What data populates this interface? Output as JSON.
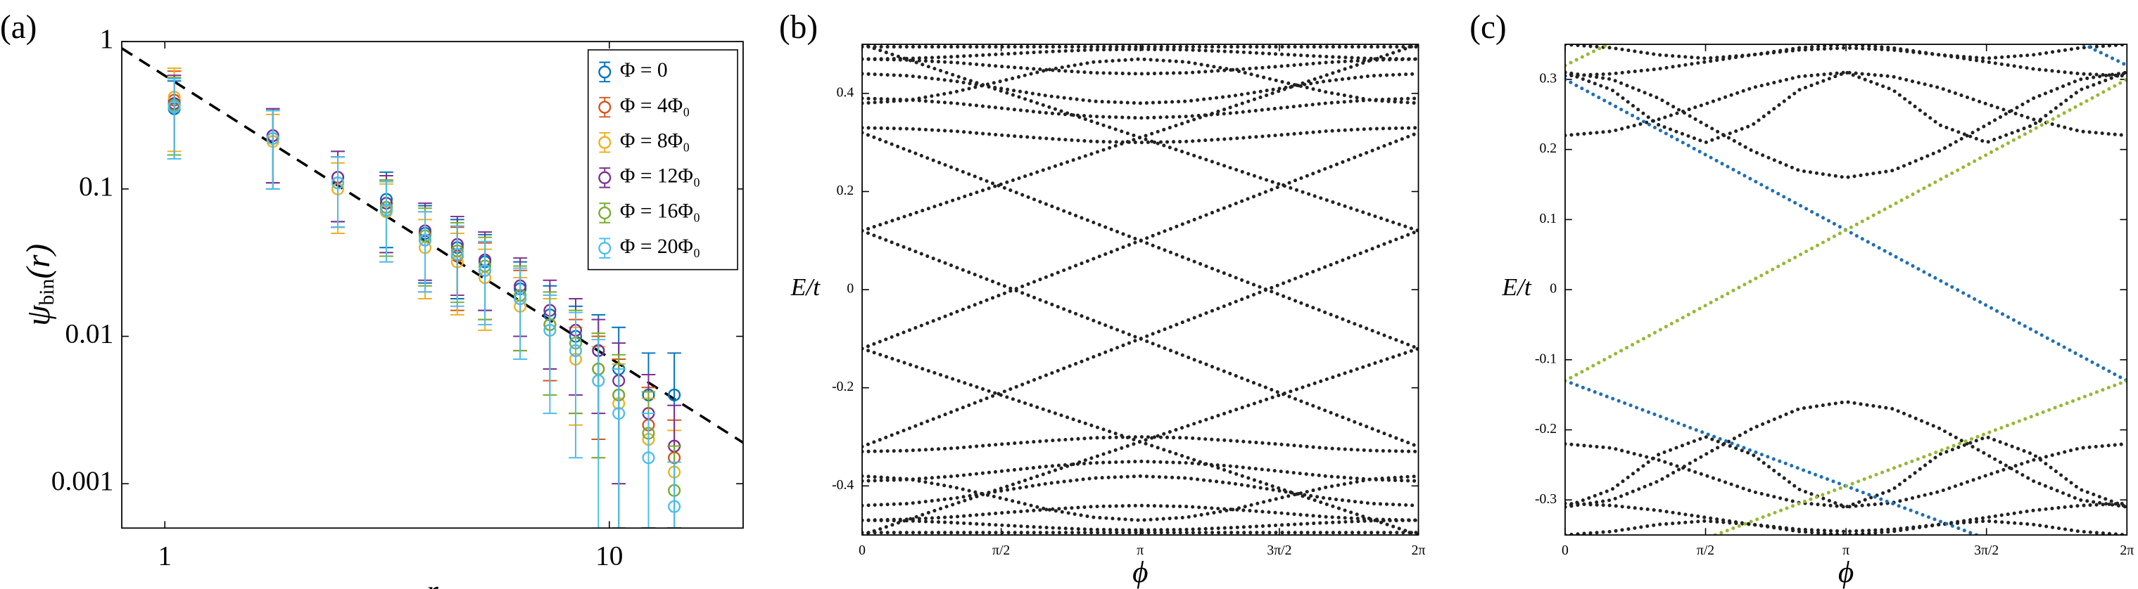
{
  "chart_data": [
    {
      "type": "scatter",
      "panel_label": "(a)",
      "x_label": "r",
      "y_label": [
        "ψ",
        "bin",
        "(r)"
      ],
      "log_x": true,
      "log_y": true,
      "xlim": [
        0.8,
        20
      ],
      "ylim": [
        0.0005,
        1
      ],
      "xticks": [
        1,
        10
      ],
      "yticks": [
        0.001,
        0.01,
        0.1,
        1
      ],
      "legend": "upper right",
      "x": [
        1.05,
        1.75,
        2.45,
        3.15,
        3.85,
        4.55,
        5.25,
        6.3,
        7.35,
        8.4,
        9.45,
        10.5,
        12.25,
        14
      ],
      "fit_line": {
        "color": "#000000",
        "x": [
          0.8,
          20
        ],
        "values": [
          0.9,
          0.0019
        ]
      },
      "series": [
        {
          "name": "Φ = 0",
          "color": "#0072bd",
          "values": [
            0.35,
            0.23,
            0.12,
            0.085,
            0.05,
            0.04,
            0.032,
            0.021,
            0.014,
            0.01,
            0.008,
            0.006,
            0.004,
            0.004
          ],
          "errors": [
            0.19,
            0.12,
            0.06,
            0.045,
            0.027,
            0.022,
            0.017,
            0.011,
            0.008,
            0.006,
            0.006,
            0.0055,
            0.0037,
            0.0037
          ]
        },
        {
          "name": "Φ = 4Φ₀",
          "color": "#d95319",
          "values": [
            0.4,
            0.22,
            0.11,
            0.075,
            0.045,
            0.035,
            0.028,
            0.018,
            0.012,
            0.008,
            0.006,
            0.004,
            0.0025,
            0.0015
          ],
          "errors": [
            0.23,
            0.12,
            0.055,
            0.04,
            0.025,
            0.02,
            0.015,
            0.01,
            0.007,
            0.005,
            0.004,
            0.003,
            0.002,
            0.0012
          ]
        },
        {
          "name": "Φ = 8Φ₀",
          "color": "#edb120",
          "values": [
            0.42,
            0.21,
            0.1,
            0.07,
            0.04,
            0.032,
            0.025,
            0.016,
            0.011,
            0.007,
            0.005,
            0.0035,
            0.002,
            0.0012
          ],
          "errors": [
            0.24,
            0.11,
            0.05,
            0.038,
            0.022,
            0.018,
            0.014,
            0.009,
            0.007,
            0.0045,
            0.0035,
            0.003,
            0.0018,
            0.0011
          ]
        },
        {
          "name": "Φ = 12Φ₀",
          "color": "#7e2f8e",
          "values": [
            0.38,
            0.23,
            0.12,
            0.08,
            0.052,
            0.042,
            0.033,
            0.022,
            0.015,
            0.011,
            0.008,
            0.005,
            0.003,
            0.0018
          ],
          "errors": [
            0.21,
            0.12,
            0.06,
            0.043,
            0.028,
            0.023,
            0.018,
            0.012,
            0.009,
            0.007,
            0.005,
            0.004,
            0.0025,
            0.0016
          ]
        },
        {
          "name": "Φ = 16Φ₀",
          "color": "#77ac30",
          "values": [
            0.37,
            0.22,
            0.11,
            0.075,
            0.048,
            0.038,
            0.03,
            0.019,
            0.012,
            0.009,
            0.006,
            0.004,
            0.0022,
            0.0009
          ],
          "errors": [
            0.2,
            0.12,
            0.055,
            0.04,
            0.026,
            0.021,
            0.017,
            0.011,
            0.008,
            0.006,
            0.0045,
            0.0035,
            0.002,
            0.0009
          ]
        },
        {
          "name": "Φ = 20Φ₀",
          "color": "#4dbeee",
          "values": [
            0.36,
            0.22,
            0.11,
            0.072,
            0.045,
            0.036,
            0.028,
            0.018,
            0.011,
            0.008,
            0.005,
            0.003,
            0.0015,
            0.0007
          ],
          "errors": [
            0.2,
            0.12,
            0.055,
            0.04,
            0.025,
            0.02,
            0.016,
            0.011,
            0.008,
            0.0065,
            0.0045,
            0.003,
            0.0015,
            0.0007
          ]
        }
      ]
    },
    {
      "type": "line",
      "panel_label": "(b)",
      "x_label": "ϕ",
      "y_label": "E/t",
      "xlim": [
        0,
        6.2832
      ],
      "ylim": [
        -0.5,
        0.5
      ],
      "xticks": [
        0,
        {
          "value": 1.5708,
          "label": "π/2"
        },
        {
          "value": 3.1416,
          "label": "π"
        },
        {
          "value": 4.7124,
          "label": "3π/2"
        },
        {
          "value": 6.2832,
          "label": "2π"
        }
      ],
      "yticks": [
        -0.4,
        -0.2,
        0,
        0.2,
        0.4
      ],
      "x": [
        0,
        0.5236,
        1.0472,
        1.5708,
        2.0944,
        2.618,
        3.1416,
        3.6652,
        4.1888,
        4.7124,
        5.236,
        5.7596,
        6.2832
      ],
      "series": [
        {
          "color": "#222222",
          "values": [
            0.33,
            0.328,
            0.323,
            0.315,
            0.308,
            0.302,
            0.3,
            0.302,
            0.308,
            0.315,
            0.323,
            0.328,
            0.33
          ]
        },
        {
          "color": "#222222",
          "values": [
            0.39,
            0.387,
            0.38,
            0.37,
            0.36,
            0.353,
            0.35,
            0.353,
            0.36,
            0.37,
            0.38,
            0.387,
            0.39
          ]
        },
        {
          "color": "#222222",
          "values": [
            0.38,
            0.386,
            0.403,
            0.425,
            0.448,
            0.464,
            0.47,
            0.464,
            0.448,
            0.425,
            0.403,
            0.386,
            0.38
          ]
        },
        {
          "color": "#222222",
          "values": [
            0.44,
            0.436,
            0.425,
            0.41,
            0.395,
            0.384,
            0.38,
            0.384,
            0.395,
            0.41,
            0.425,
            0.436,
            0.44
          ]
        },
        {
          "color": "#222222",
          "values": [
            0.47,
            0.468,
            0.463,
            0.455,
            0.448,
            0.442,
            0.44,
            0.442,
            0.448,
            0.455,
            0.463,
            0.468,
            0.47
          ]
        },
        {
          "color": "#222222",
          "values": [
            0.47,
            0.471,
            0.475,
            0.48,
            0.485,
            0.489,
            0.49,
            0.489,
            0.485,
            0.48,
            0.475,
            0.471,
            0.47
          ]
        },
        {
          "color": "#222222",
          "values": [
            0.495,
            0.495,
            0.495,
            0.495,
            0.495,
            0.495,
            0.495,
            0.495,
            0.495,
            0.495,
            0.495,
            0.495,
            0.495
          ]
        },
        {
          "color": "#222222",
          "values": [
            -0.33,
            -0.328,
            -0.323,
            -0.315,
            -0.308,
            -0.302,
            -0.3,
            -0.302,
            -0.308,
            -0.315,
            -0.323,
            -0.328,
            -0.33
          ]
        },
        {
          "color": "#222222",
          "values": [
            -0.39,
            -0.387,
            -0.38,
            -0.37,
            -0.36,
            -0.353,
            -0.35,
            -0.353,
            -0.36,
            -0.37,
            -0.38,
            -0.387,
            -0.39
          ]
        },
        {
          "color": "#222222",
          "values": [
            -0.38,
            -0.386,
            -0.403,
            -0.425,
            -0.448,
            -0.464,
            -0.47,
            -0.464,
            -0.448,
            -0.425,
            -0.403,
            -0.386,
            -0.38
          ]
        },
        {
          "color": "#222222",
          "values": [
            -0.44,
            -0.436,
            -0.425,
            -0.41,
            -0.395,
            -0.384,
            -0.38,
            -0.384,
            -0.395,
            -0.41,
            -0.425,
            -0.436,
            -0.44
          ]
        },
        {
          "color": "#222222",
          "values": [
            -0.47,
            -0.468,
            -0.463,
            -0.455,
            -0.448,
            -0.442,
            -0.44,
            -0.442,
            -0.448,
            -0.455,
            -0.463,
            -0.468,
            -0.47
          ]
        },
        {
          "color": "#222222",
          "values": [
            -0.47,
            -0.471,
            -0.475,
            -0.48,
            -0.485,
            -0.489,
            -0.49,
            -0.489,
            -0.485,
            -0.48,
            -0.475,
            -0.471,
            -0.47
          ]
        },
        {
          "color": "#222222",
          "values": [
            -0.495,
            -0.495,
            -0.495,
            -0.495,
            -0.495,
            -0.495,
            -0.495,
            -0.495,
            -0.495,
            -0.495,
            -0.495,
            -0.495,
            -0.495
          ]
        },
        {
          "color": "#222222",
          "x": [
            0,
            6.2832
          ],
          "values": [
            0.32,
            -0.12
          ]
        },
        {
          "color": "#222222",
          "x": [
            0,
            6.2832
          ],
          "values": [
            -0.12,
            0.32
          ]
        },
        {
          "color": "#222222",
          "x": [
            0,
            6.2832
          ],
          "values": [
            0.12,
            -0.32
          ]
        },
        {
          "color": "#222222",
          "x": [
            0,
            6.2832
          ],
          "values": [
            -0.32,
            0.12
          ]
        },
        {
          "color": "#222222",
          "x": [
            0,
            6.2832
          ],
          "values": [
            0.12,
            0.5
          ]
        },
        {
          "color": "#222222",
          "x": [
            0,
            6.2832
          ],
          "values": [
            0.5,
            0.12
          ]
        },
        {
          "color": "#222222",
          "x": [
            0,
            6.2832
          ],
          "values": [
            -0.12,
            -0.5
          ]
        },
        {
          "color": "#222222",
          "x": [
            0,
            6.2832
          ],
          "values": [
            -0.5,
            -0.12
          ]
        }
      ]
    },
    {
      "type": "line",
      "panel_label": "(c)",
      "x_label": "ϕ",
      "y_label": "E/t",
      "xlim": [
        0,
        6.2832
      ],
      "ylim": [
        -0.35,
        0.35
      ],
      "xticks": [
        0,
        {
          "value": 1.5708,
          "label": "π/2"
        },
        {
          "value": 3.1416,
          "label": "π"
        },
        {
          "value": 4.7124,
          "label": "3π/2"
        },
        {
          "value": 6.2832,
          "label": "2π"
        }
      ],
      "yticks": [
        -0.3,
        -0.2,
        -0.1,
        0,
        0.1,
        0.2,
        0.3
      ],
      "x": [
        0,
        0.5236,
        1.0472,
        1.5708,
        2.0944,
        2.618,
        3.1416,
        3.6652,
        4.1888,
        4.7124,
        5.236,
        5.7596,
        6.2832
      ],
      "series": [
        {
          "color": "#222222",
          "values": [
            0.22,
            0.226,
            0.243,
            0.265,
            0.288,
            0.304,
            0.31,
            0.304,
            0.288,
            0.265,
            0.243,
            0.226,
            0.22
          ]
        },
        {
          "color": "#222222",
          "values": [
            0.31,
            0.3,
            0.273,
            0.235,
            0.198,
            0.17,
            0.16,
            0.17,
            0.198,
            0.235,
            0.273,
            0.3,
            0.31
          ]
        },
        {
          "color": "#222222",
          "values": [
            0.31,
            0.285,
            0.235,
            0.21,
            0.235,
            0.285,
            0.31,
            0.285,
            0.235,
            0.21,
            0.235,
            0.285,
            0.31
          ]
        },
        {
          "color": "#222222",
          "values": [
            0.305,
            0.308,
            0.315,
            0.325,
            0.335,
            0.342,
            0.345,
            0.342,
            0.335,
            0.325,
            0.315,
            0.308,
            0.305
          ]
        },
        {
          "color": "#222222",
          "values": [
            0.35,
            0.345,
            0.335,
            0.33,
            0.335,
            0.345,
            0.35,
            0.345,
            0.335,
            0.33,
            0.335,
            0.345,
            0.35
          ]
        },
        {
          "color": "#222222",
          "values": [
            -0.22,
            -0.226,
            -0.243,
            -0.265,
            -0.288,
            -0.304,
            -0.31,
            -0.304,
            -0.288,
            -0.265,
            -0.243,
            -0.226,
            -0.22
          ]
        },
        {
          "color": "#222222",
          "values": [
            -0.31,
            -0.3,
            -0.273,
            -0.235,
            -0.198,
            -0.17,
            -0.16,
            -0.17,
            -0.198,
            -0.235,
            -0.273,
            -0.3,
            -0.31
          ]
        },
        {
          "color": "#222222",
          "values": [
            -0.31,
            -0.285,
            -0.235,
            -0.21,
            -0.235,
            -0.285,
            -0.31,
            -0.285,
            -0.235,
            -0.21,
            -0.235,
            -0.285,
            -0.31
          ]
        },
        {
          "color": "#222222",
          "values": [
            -0.305,
            -0.308,
            -0.315,
            -0.325,
            -0.335,
            -0.342,
            -0.345,
            -0.342,
            -0.335,
            -0.325,
            -0.315,
            -0.308,
            -0.305
          ]
        },
        {
          "color": "#222222",
          "values": [
            -0.35,
            -0.345,
            -0.335,
            -0.33,
            -0.335,
            -0.345,
            -0.35,
            -0.345,
            -0.335,
            -0.33,
            -0.335,
            -0.345,
            -0.35
          ]
        },
        {
          "color": "#1f6fb5",
          "x": [
            0,
            6.2832
          ],
          "values": [
            0.3,
            -0.13
          ]
        },
        {
          "color": "#1f6fb5",
          "x": [
            0,
            4.6
          ],
          "values": [
            -0.13,
            -0.35
          ]
        },
        {
          "color": "#1f6fb5",
          "x": [
            5.8,
            6.2832
          ],
          "values": [
            0.35,
            0.32
          ]
        },
        {
          "color": "#94b933",
          "x": [
            0,
            6.2832
          ],
          "values": [
            -0.13,
            0.3
          ]
        },
        {
          "color": "#94b933",
          "x": [
            1.68,
            6.2832
          ],
          "values": [
            -0.35,
            -0.13
          ]
        },
        {
          "color": "#94b933",
          "x": [
            0,
            0.48
          ],
          "values": [
            0.32,
            0.35
          ]
        }
      ]
    }
  ]
}
